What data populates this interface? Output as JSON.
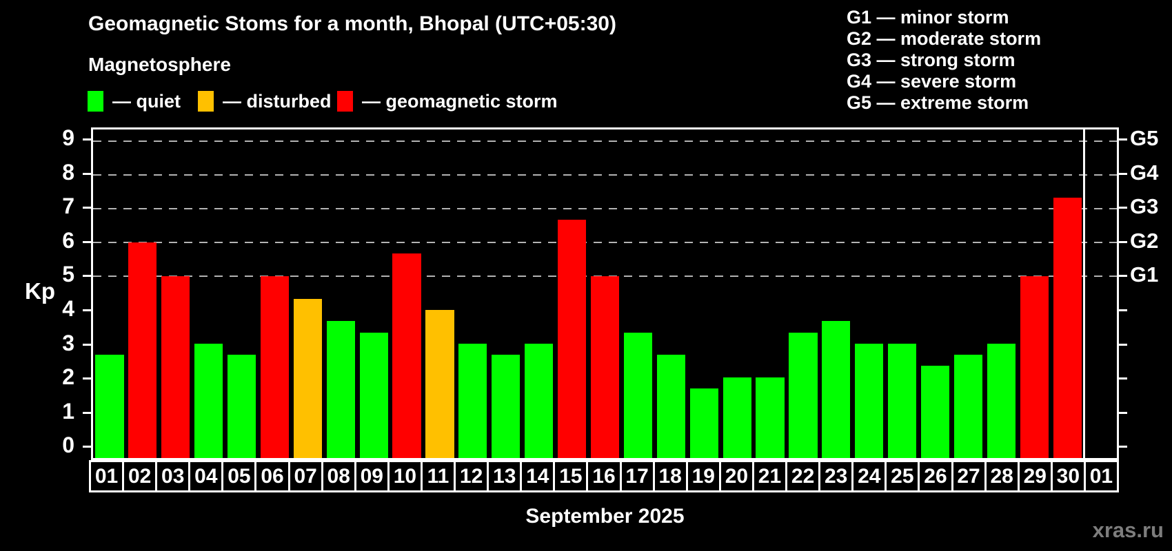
{
  "title": "Geomagnetic Stoms for a month, Bhopal (UTC+05:30)",
  "subtitle": "Magnetosphere",
  "legend": {
    "items": [
      {
        "status": "quiet",
        "label": "— quiet",
        "color": "#00ff00"
      },
      {
        "status": "disturbed",
        "label": "— disturbed",
        "color": "#ffc000"
      },
      {
        "status": "storm",
        "label": "— geomagnetic storm",
        "color": "#ff0000"
      }
    ]
  },
  "g_legend": {
    "lines": [
      "G1 — minor storm",
      "G2 — moderate storm",
      "G3 — strong storm",
      "G4 — severe storm",
      "G5 — extreme storm"
    ]
  },
  "axes": {
    "kp_label": "Kp",
    "y_ticks": [
      0,
      1,
      2,
      3,
      4,
      5,
      6,
      7,
      8,
      9
    ],
    "grid_levels": [
      5,
      6,
      7,
      8,
      9
    ],
    "right_labels": [
      {
        "text": "G1",
        "kp": 5
      },
      {
        "text": "G2",
        "kp": 6
      },
      {
        "text": "G3",
        "kp": 7
      },
      {
        "text": "G4",
        "kp": 8
      },
      {
        "text": "G5",
        "kp": 9
      }
    ]
  },
  "x_axis": {
    "month_label": "September 2025",
    "next_month_day": "01"
  },
  "watermark": "xras.ru",
  "colors": {
    "background": "#000000",
    "quiet": "#00ff00",
    "disturbed": "#ffc000",
    "storm": "#ff0000",
    "grid": "#b4b4b4",
    "frame": "#ffffff",
    "watermark": "#7d7d7d"
  },
  "chart_data": {
    "type": "bar",
    "title": "Geomagnetic Stoms for a month, Bhopal (UTC+05:30)",
    "subtitle": "Magnetosphere",
    "xlabel": "September 2025",
    "ylabel": "Kp",
    "ylim": [
      0,
      9
    ],
    "grid": "dashed horizontal lines at Kp 5,6,7,8,9 (G1–G5)",
    "legend_position": "top",
    "categories": [
      "01",
      "02",
      "03",
      "04",
      "05",
      "06",
      "07",
      "08",
      "09",
      "10",
      "11",
      "12",
      "13",
      "14",
      "15",
      "16",
      "17",
      "18",
      "19",
      "20",
      "21",
      "22",
      "23",
      "24",
      "25",
      "26",
      "27",
      "28",
      "29",
      "30"
    ],
    "values": [
      2.67,
      6.0,
      5.0,
      3.0,
      2.67,
      5.0,
      4.33,
      3.67,
      3.33,
      5.67,
      4.0,
      3.0,
      2.67,
      3.0,
      6.67,
      5.0,
      3.33,
      2.67,
      1.67,
      2.0,
      2.0,
      3.33,
      3.67,
      3.0,
      3.0,
      2.33,
      2.67,
      3.0,
      5.0,
      7.33
    ],
    "statuses": [
      "quiet",
      "storm",
      "storm",
      "quiet",
      "quiet",
      "storm",
      "disturbed",
      "quiet",
      "quiet",
      "storm",
      "disturbed",
      "quiet",
      "quiet",
      "quiet",
      "storm",
      "storm",
      "quiet",
      "quiet",
      "quiet",
      "quiet",
      "quiet",
      "quiet",
      "quiet",
      "quiet",
      "quiet",
      "quiet",
      "quiet",
      "quiet",
      "storm",
      "storm"
    ],
    "extra_empty_category": "01"
  }
}
